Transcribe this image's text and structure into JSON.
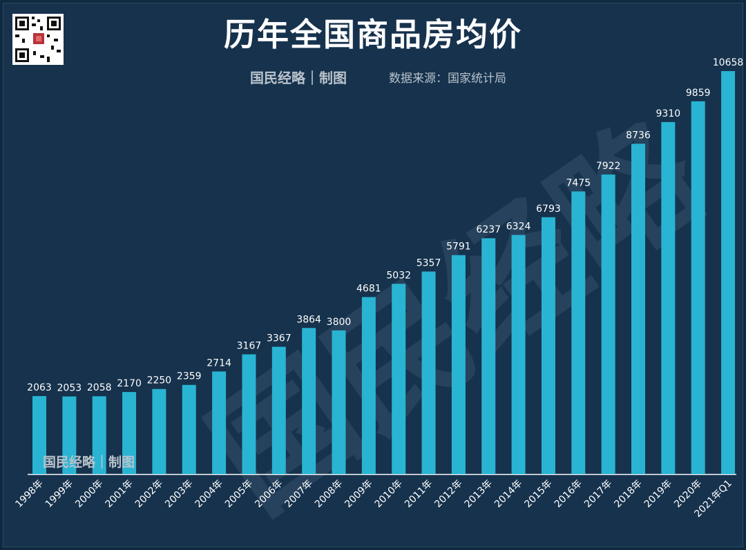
{
  "title": "历年全国商品房均价",
  "brand": "国民经略｜制图",
  "source": "数据来源：国家统计局",
  "watermark": "国民经略",
  "inner_brand": "国民经略｜制图",
  "colors": {
    "bar": "#29b4d3",
    "label": "#ffffff",
    "axis": "#ffffff"
  },
  "qr_icon": "qr-code-icon",
  "chart_data": {
    "type": "bar",
    "title": "历年全国商品房均价",
    "xlabel": "",
    "ylabel": "",
    "categories": [
      "1998年",
      "1999年",
      "2000年",
      "2001年",
      "2002年",
      "2003年",
      "2004年",
      "2005年",
      "2006年",
      "2007年",
      "2008年",
      "2009年",
      "2010年",
      "2011年",
      "2012年",
      "2013年",
      "2014年",
      "2015年",
      "2016年",
      "2017年",
      "2018年",
      "2019年",
      "2020年",
      "2021年Q1"
    ],
    "values": [
      2063,
      2053,
      2058,
      2170,
      2250,
      2359,
      2714,
      3167,
      3367,
      3864,
      3800,
      4681,
      5032,
      5357,
      5791,
      6237,
      6324,
      6793,
      7475,
      7922,
      8736,
      9310,
      9859,
      10658
    ],
    "ylim": [
      0,
      10658
    ],
    "grid": false,
    "legend": "none"
  }
}
